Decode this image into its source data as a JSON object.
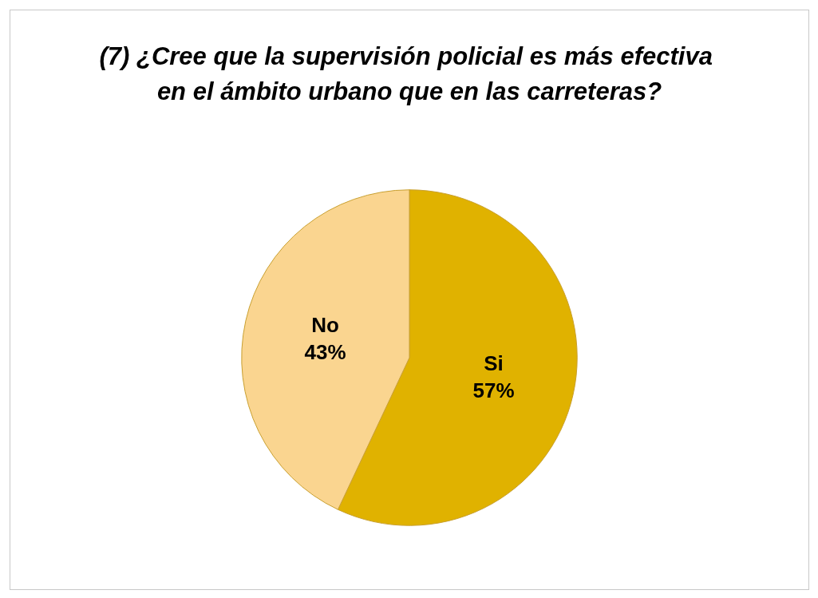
{
  "chart_data": {
    "type": "pie",
    "title": "(7) ¿Cree que la supervisión policial es más efectiva en el ámbito urbano que en las carreteras?",
    "categories": [
      "Si",
      "No"
    ],
    "values": [
      57,
      43
    ],
    "colors": [
      "#e0b200",
      "#fad590"
    ],
    "value_labels": [
      "57%",
      "43%"
    ]
  }
}
